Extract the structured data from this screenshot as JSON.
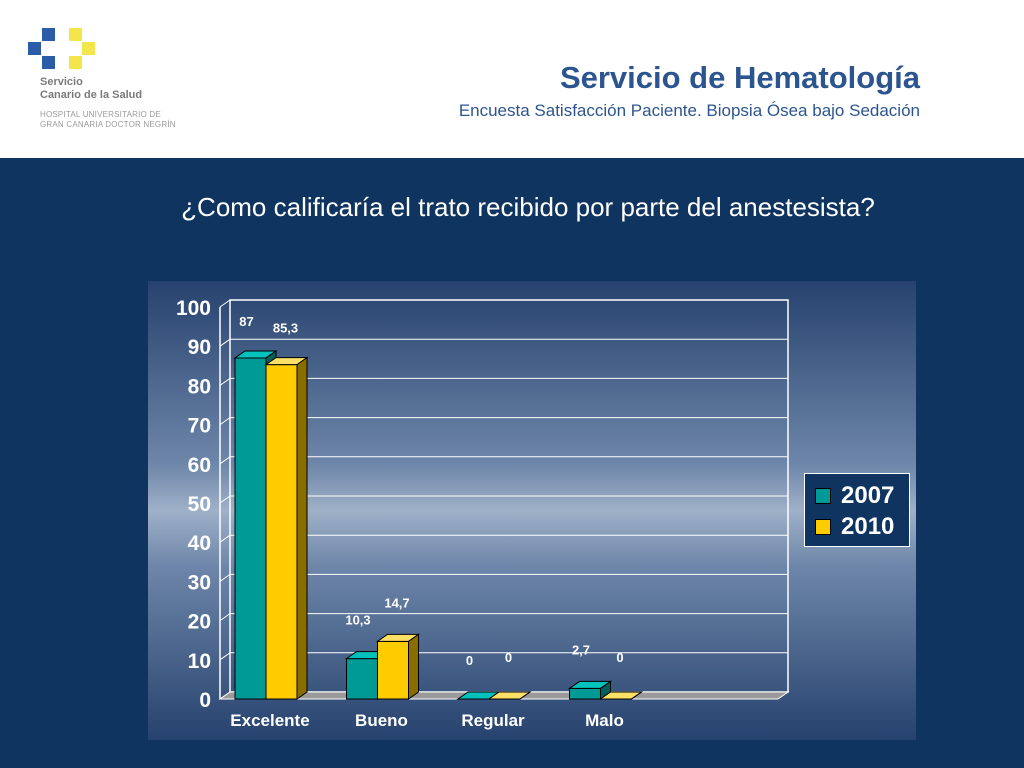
{
  "header": {
    "org_line1": "Servicio",
    "org_line2": "Canario de la Salud",
    "hospital_line1": "HOSPITAL UNIVERSITARIO DE",
    "hospital_line2": "GRAN CANARIA DOCTOR NEGRÍN",
    "title": "Servicio de Hematología",
    "subtitle": "Encuesta Satisfacción Paciente. Biopsia Ósea bajo Sedación"
  },
  "question": "¿Como calificaría el trato recibido por parte del anestesista?",
  "colors": {
    "header_bg": "#ffffff",
    "title": "#2c5590",
    "main_bg": "#0f3460",
    "logo_blue": "#2a5ca8",
    "logo_yellow": "#f2e64a",
    "series_2007": "#009a96",
    "series_2010": "#ffcc00"
  },
  "chart_data": {
    "type": "bar",
    "categories": [
      "Excelente",
      "Bueno",
      "Regular",
      "Malo"
    ],
    "series": [
      {
        "name": "2007",
        "values": [
          87,
          10.3,
          0,
          2.7
        ],
        "labels": [
          "87",
          "10,3",
          "0",
          "2,7"
        ]
      },
      {
        "name": "2010",
        "values": [
          85.3,
          14.7,
          0,
          0
        ],
        "labels": [
          "85,3",
          "14,7",
          "0",
          "0"
        ]
      }
    ],
    "yticks": [
      "0",
      "10",
      "20",
      "30",
      "40",
      "50",
      "60",
      "70",
      "80",
      "90",
      "100"
    ],
    "ylim": [
      0,
      100
    ],
    "grid": true,
    "legend_position": "right",
    "style": "3d-clustered-bar"
  }
}
